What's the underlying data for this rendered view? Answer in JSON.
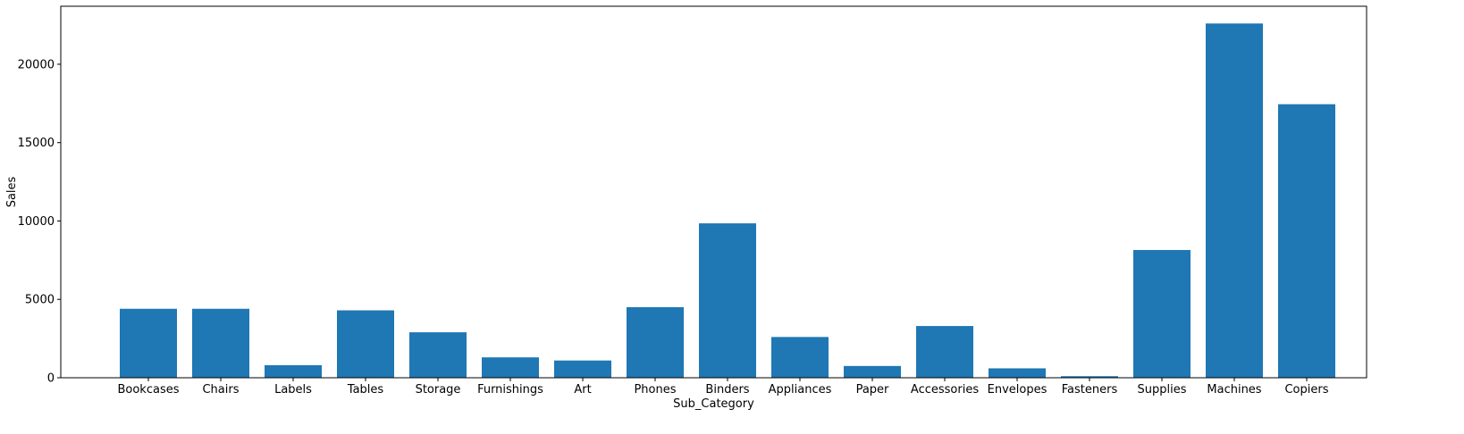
{
  "chart_data": {
    "type": "bar",
    "title": "",
    "xlabel": "Sub_Category",
    "ylabel": "Sales",
    "categories": [
      "Bookcases",
      "Chairs",
      "Labels",
      "Tables",
      "Storage",
      "Furnishings",
      "Art",
      "Phones",
      "Binders",
      "Appliances",
      "Paper",
      "Accessories",
      "Envelopes",
      "Fasteners",
      "Supplies",
      "Machines",
      "Copiers"
    ],
    "values": [
      4400,
      4400,
      800,
      4300,
      2900,
      1300,
      1100,
      4500,
      9850,
      2600,
      750,
      3300,
      600,
      100,
      8150,
      22600,
      17450
    ],
    "ylim": [
      0,
      23700
    ],
    "yticks": [
      0,
      5000,
      10000,
      15000,
      20000
    ],
    "ytick_labels": [
      "0",
      "5000",
      "10000",
      "15000",
      "20000"
    ],
    "grid": false,
    "bar_color": "#1f77b4"
  }
}
